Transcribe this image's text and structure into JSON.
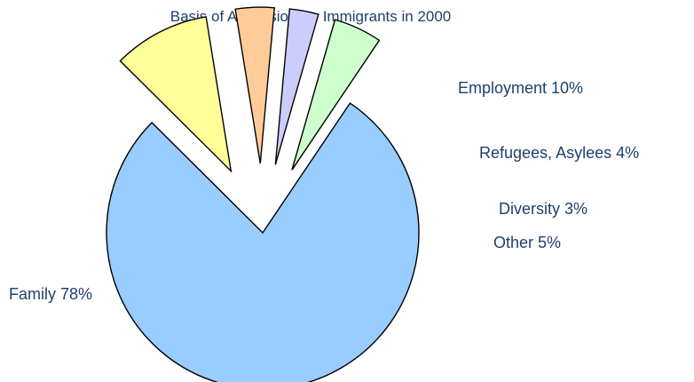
{
  "chart_data": {
    "type": "pie",
    "title": "Basis of Admission for Immigrants in 2000",
    "slices": [
      {
        "label": "Family 78%",
        "value": 78,
        "color": "#99ccff",
        "exploded": false
      },
      {
        "label": "Employment  10%",
        "value": 10,
        "color": "#ffff99",
        "exploded": true
      },
      {
        "label": "Refugees, Asylees 4%",
        "value": 4,
        "color": "#ffcc99",
        "exploded": true
      },
      {
        "label": "Diversity 3%",
        "value": 3,
        "color": "#ccccff",
        "exploded": true
      },
      {
        "label": "Other 5%",
        "value": 5,
        "color": "#ccffcc",
        "exploded": true
      }
    ],
    "legend": "none"
  }
}
